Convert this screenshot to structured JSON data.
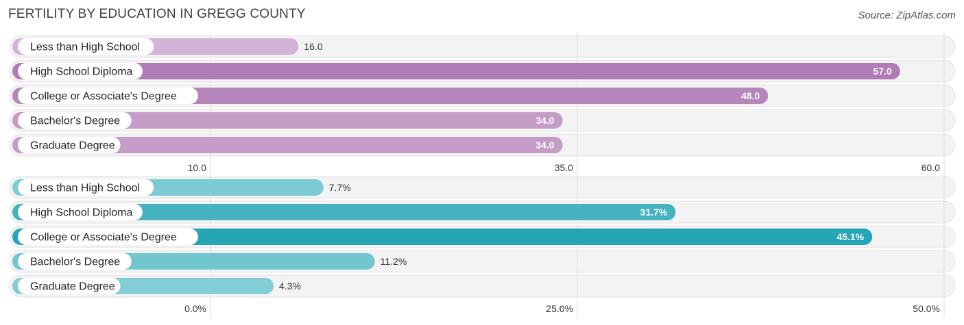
{
  "title": "FERTILITY BY EDUCATION IN GREGG COUNTY",
  "source": "Source: ZipAtlas.com",
  "chart_data": [
    {
      "type": "bar",
      "orientation": "horizontal",
      "categories": [
        "Less than High School",
        "High School Diploma",
        "College or Associate's Degree",
        "Bachelor's Degree",
        "Graduate Degree"
      ],
      "values": [
        16.0,
        57.0,
        48.0,
        34.0,
        34.0
      ],
      "value_labels": [
        "16.0",
        "57.0",
        "48.0",
        "34.0",
        "34.0"
      ],
      "xlim": [
        10.0,
        60.0
      ],
      "ticks": [
        10.0,
        35.0,
        60.0
      ],
      "tick_labels": [
        "10.0",
        "35.0",
        "60.0"
      ],
      "colors": [
        "#d4b3d8",
        "#b07cb6",
        "#b585bb",
        "#c49cc7",
        "#c49cc7"
      ],
      "grid": true
    },
    {
      "type": "bar",
      "orientation": "horizontal",
      "categories": [
        "Less than High School",
        "High School Diploma",
        "College or Associate's Degree",
        "Bachelor's Degree",
        "Graduate Degree"
      ],
      "values": [
        7.7,
        31.7,
        45.1,
        11.2,
        4.3
      ],
      "value_labels": [
        "7.7%",
        "31.7%",
        "45.1%",
        "11.2%",
        "4.3%"
      ],
      "xlim": [
        0.0,
        50.0
      ],
      "ticks": [
        0.0,
        25.0,
        50.0
      ],
      "tick_labels": [
        "0.0%",
        "25.0%",
        "50.0%"
      ],
      "colors": [
        "#7ccad3",
        "#45b2c0",
        "#26a5b5",
        "#72c6d0",
        "#83cdd6"
      ],
      "grid": true
    }
  ]
}
